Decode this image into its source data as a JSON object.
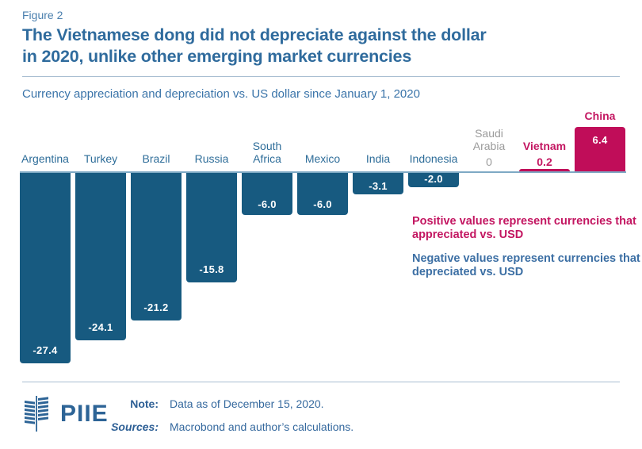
{
  "figure_label": "Figure 2",
  "title_lines": [
    "The Vietnamese dong did not depreciate against the dollar",
    "in 2020, unlike other emerging market currencies"
  ],
  "subtitle": "Currency appreciation and depreciation vs. US dollar since January 1, 2020",
  "annotations": {
    "positive_note": "Positive values represent currencies that appreciated vs. USD",
    "negative_note": "Negative values represent currencies that depreciated vs. USD"
  },
  "chart_data": {
    "type": "bar",
    "title": "Currency appreciation and depreciation vs. US dollar since January 1, 2020",
    "categories": [
      "Argentina",
      "Turkey",
      "Brazil",
      "Russia",
      "South Africa",
      "Mexico",
      "India",
      "Indonesia",
      "Saudi Arabia",
      "Vietnam",
      "China"
    ],
    "values": [
      -27.4,
      -24.1,
      -21.2,
      -15.8,
      -6.0,
      -6.0,
      -3.1,
      -2.0,
      0,
      0.2,
      6.4
    ],
    "display_values": [
      "-27.4",
      "-24.1",
      "-21.2",
      "-15.8",
      "-6.0",
      "-6.0",
      "-3.1",
      "-2.0",
      "0",
      "0.2",
      "6.4"
    ],
    "xlabel": "",
    "ylabel": "",
    "ylim": [
      -28,
      7
    ],
    "grid": false,
    "legend": false,
    "baseline": 0,
    "colors": {
      "negative_bar": "#175a80",
      "positive_bar": "#c00d59",
      "negative_label": "#2e6d99",
      "positive_label": "#c31661",
      "zero_label": "#9b9b9b",
      "baseline_line": "#7ea9c4"
    }
  },
  "footer": {
    "logo_text": "PIIE",
    "note_label": "Note:",
    "note_text": "Data as of December 15, 2020.",
    "sources_label": "Sources:",
    "sources_text": "Macrobond and author’s calculations."
  }
}
